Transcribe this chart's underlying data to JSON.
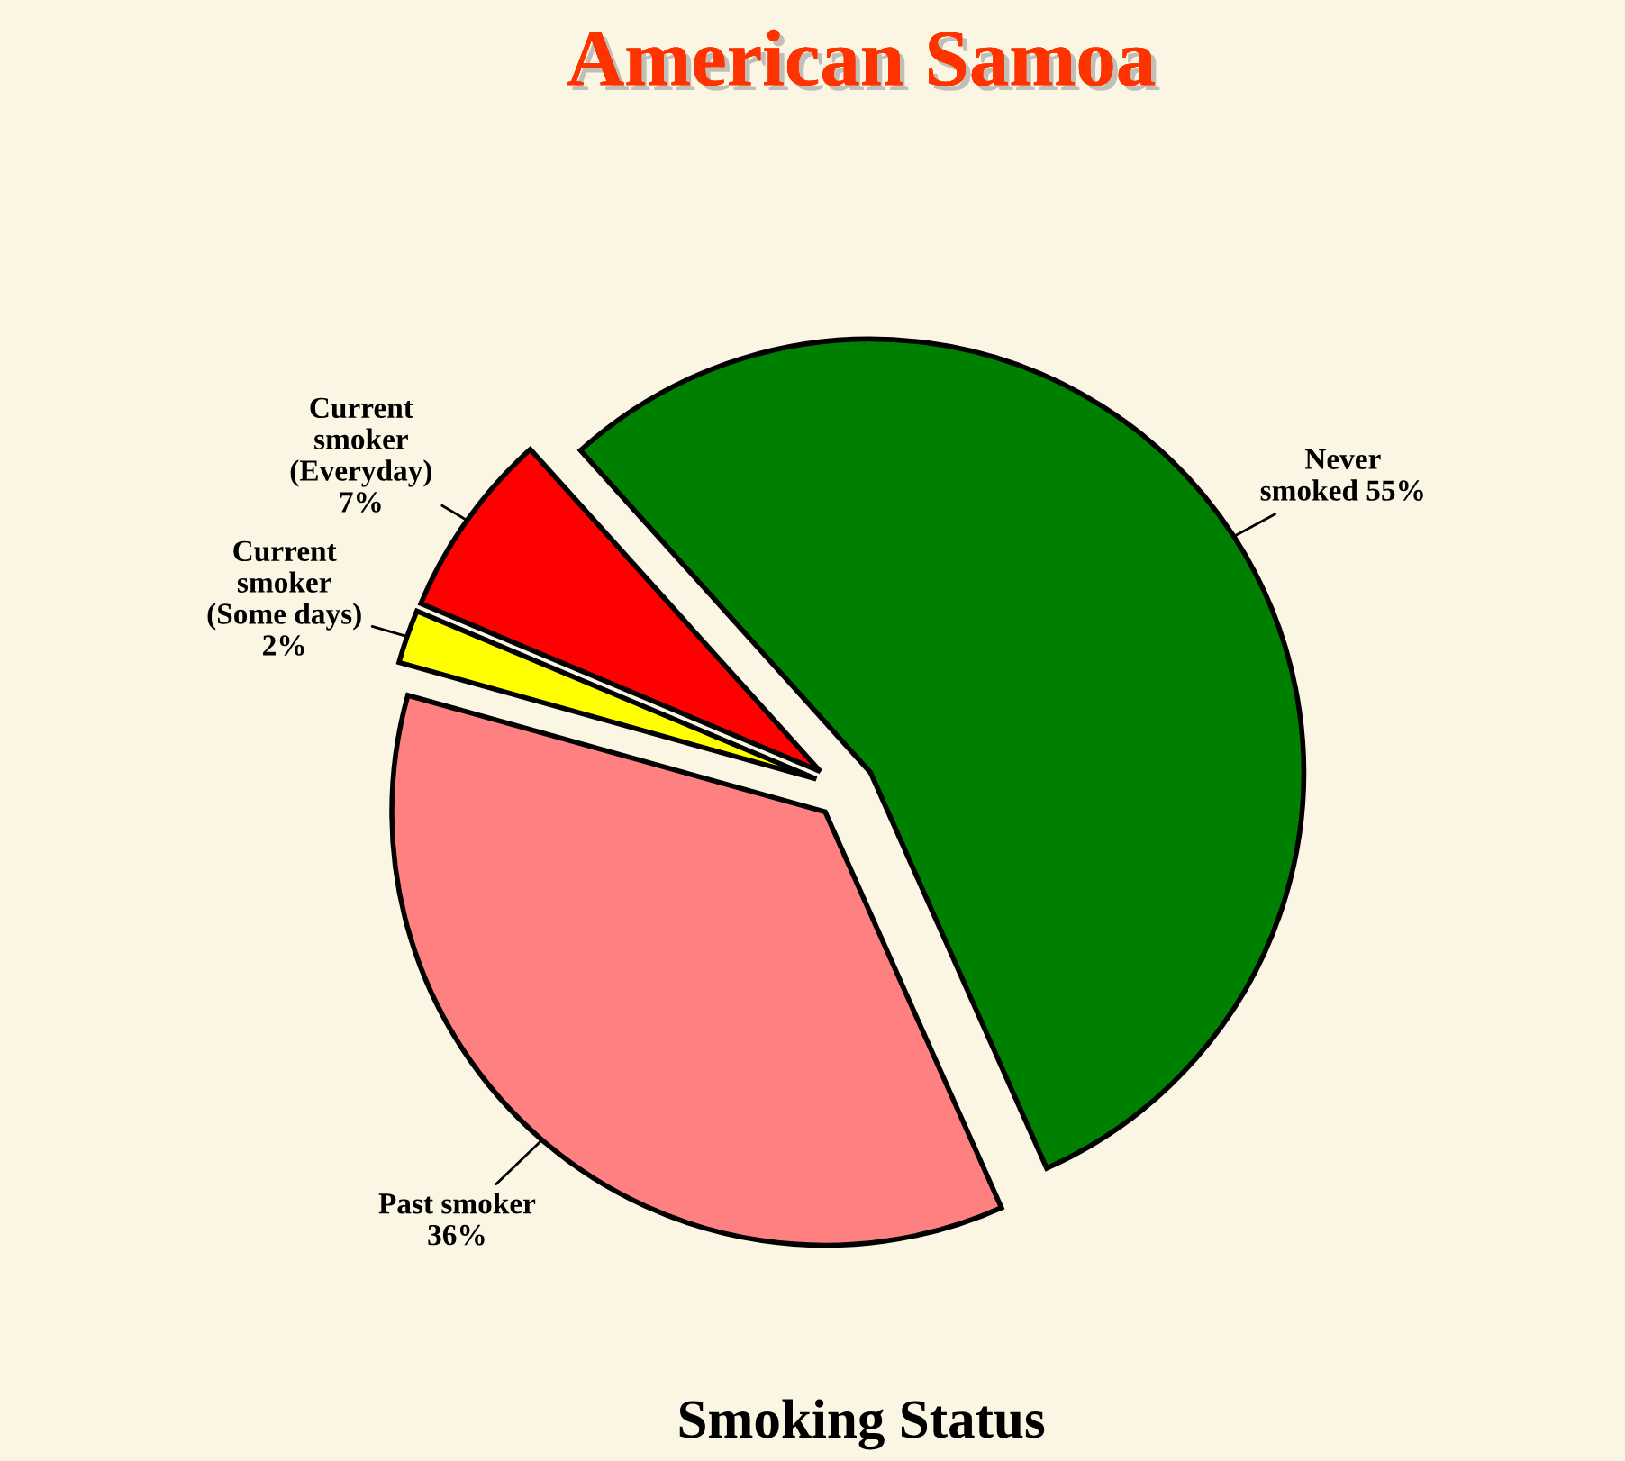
{
  "chart_data": {
    "type": "pie",
    "title": "American Samoa",
    "categories": [
      "Never smoked",
      "Past smoker",
      "Current smoker (Some days)",
      "Current smoker (Everyday)"
    ],
    "values": [
      55,
      36,
      2,
      7
    ],
    "colors": [
      "#008000",
      "#ff8080",
      "#ffff00",
      "#ff0000"
    ],
    "value_labels": [
      "55%",
      "36%",
      "2%",
      "7%"
    ],
    "annotations": [
      "Smoking Status"
    ]
  }
}
